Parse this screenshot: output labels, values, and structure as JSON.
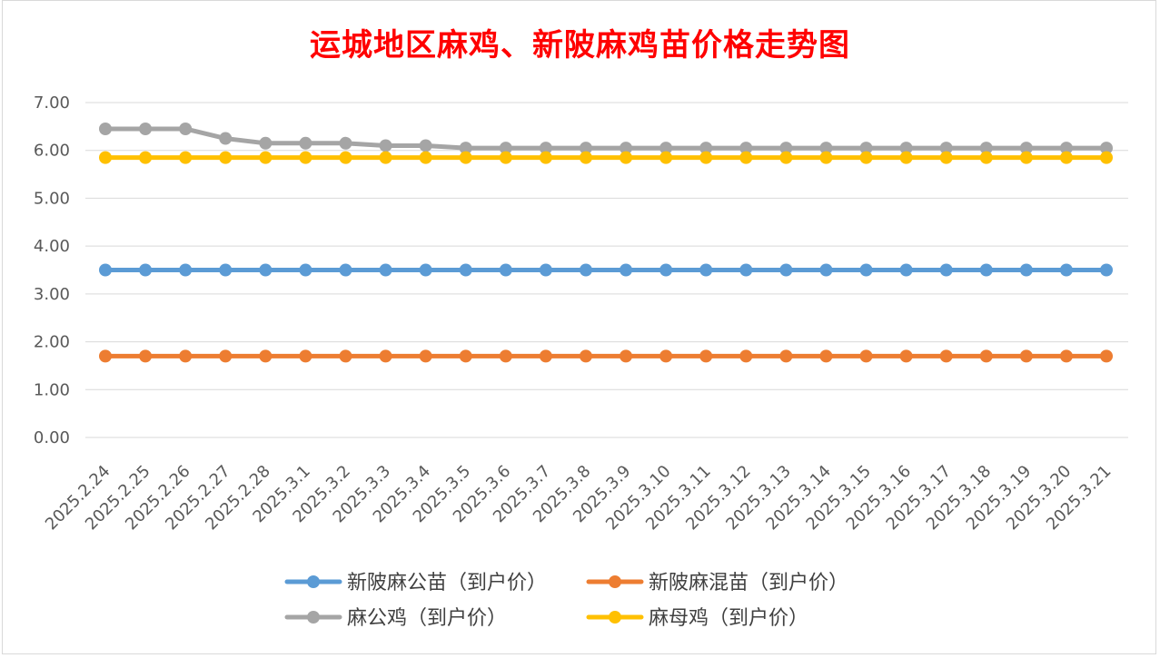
{
  "chart_data": {
    "type": "line",
    "title": "运城地区麻鸡、新陂麻鸡苗价格走势图",
    "xlabel": "",
    "ylabel": "",
    "ylim": [
      0,
      7
    ],
    "y_ticks": [
      "0.00",
      "1.00",
      "2.00",
      "3.00",
      "4.00",
      "5.00",
      "6.00",
      "7.00"
    ],
    "grid": true,
    "legend_position": "bottom",
    "categories": [
      "2025.2.24",
      "2025.2.25",
      "2025.2.26",
      "2025.2.27",
      "2025.2.28",
      "2025.3.1",
      "2025.3.2",
      "2025.3.3",
      "2025.3.4",
      "2025.3.5",
      "2025.3.6",
      "2025.3.7",
      "2025.3.8",
      "2025.3.9",
      "2025.3.10",
      "2025.3.11",
      "2025.3.12",
      "2025.3.13",
      "2025.3.14",
      "2025.3.15",
      "2025.3.16",
      "2025.3.17",
      "2025.3.18",
      "2025.3.19",
      "2025.3.20",
      "2025.3.21"
    ],
    "series": [
      {
        "name": "新陂麻公苗（到户价）",
        "color": "#5b9bd5",
        "values": [
          3.5,
          3.5,
          3.5,
          3.5,
          3.5,
          3.5,
          3.5,
          3.5,
          3.5,
          3.5,
          3.5,
          3.5,
          3.5,
          3.5,
          3.5,
          3.5,
          3.5,
          3.5,
          3.5,
          3.5,
          3.5,
          3.5,
          3.5,
          3.5,
          3.5,
          3.5
        ]
      },
      {
        "name": "新陂麻混苗（到户价）",
        "color": "#ed7d31",
        "values": [
          1.7,
          1.7,
          1.7,
          1.7,
          1.7,
          1.7,
          1.7,
          1.7,
          1.7,
          1.7,
          1.7,
          1.7,
          1.7,
          1.7,
          1.7,
          1.7,
          1.7,
          1.7,
          1.7,
          1.7,
          1.7,
          1.7,
          1.7,
          1.7,
          1.7,
          1.7
        ]
      },
      {
        "name": "麻公鸡（到户价）",
        "color": "#a5a5a5",
        "values": [
          6.45,
          6.45,
          6.45,
          6.25,
          6.15,
          6.15,
          6.15,
          6.1,
          6.1,
          6.05,
          6.05,
          6.05,
          6.05,
          6.05,
          6.05,
          6.05,
          6.05,
          6.05,
          6.05,
          6.05,
          6.05,
          6.05,
          6.05,
          6.05,
          6.05,
          6.05
        ]
      },
      {
        "name": "麻母鸡（到户价）",
        "color": "#ffc000",
        "values": [
          5.85,
          5.85,
          5.85,
          5.85,
          5.85,
          5.85,
          5.85,
          5.85,
          5.85,
          5.85,
          5.85,
          5.85,
          5.85,
          5.85,
          5.85,
          5.85,
          5.85,
          5.85,
          5.85,
          5.85,
          5.85,
          5.85,
          5.85,
          5.85,
          5.85,
          5.85
        ]
      }
    ]
  }
}
